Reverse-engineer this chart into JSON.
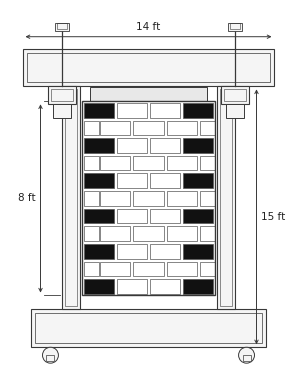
{
  "fig_width": 2.97,
  "fig_height": 3.76,
  "bg_color": "#ffffff",
  "line_color": "#383838",
  "fill_color": "#f5f5f5",
  "black_color": "#111111",
  "brick_edge_color": "#555555",
  "dim_color": "#222222",
  "dim_14ft_text": "14 ft",
  "dim_8ft_text": "8 ft",
  "dim_15ft_text": "15 ft",
  "num_brick_rows": 11,
  "bricks_per_row": 4,
  "black_edge_rows": [
    0,
    2,
    4,
    6,
    8,
    10
  ]
}
